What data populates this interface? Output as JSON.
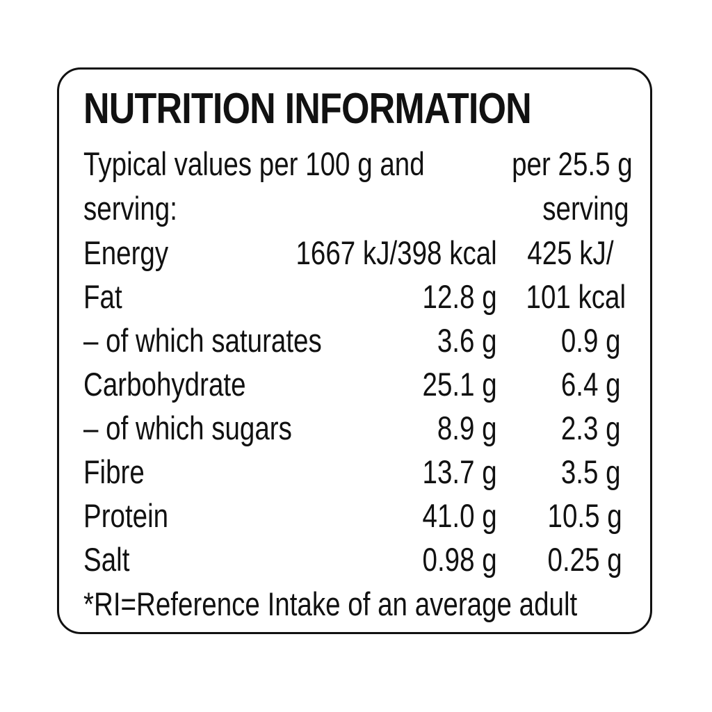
{
  "label": {
    "title": "NUTRITION INFORMATION",
    "header": {
      "line1_left": "Typical values per 100 g and",
      "line1_right": "per 25.5 g",
      "line2_left": "serving:",
      "line2_right": "serving"
    },
    "rows": [
      {
        "name": "Energy",
        "per_100g": "1667 kJ/398 kcal",
        "per_serving": "425 kJ/"
      },
      {
        "name": "Fat",
        "per_100g": "12.8 g",
        "per_serving": "101 kcal"
      },
      {
        "name": "– of which saturates",
        "per_100g": "3.6 g",
        "per_serving": "0.9 g"
      },
      {
        "name": "Carbohydrate",
        "per_100g": "25.1 g",
        "per_serving": "6.4 g"
      },
      {
        "name": "– of which sugars",
        "per_100g": "8.9 g",
        "per_serving": "2.3 g"
      },
      {
        "name": "Fibre",
        "per_100g": "13.7 g",
        "per_serving": "3.5 g"
      },
      {
        "name": "Protein",
        "per_100g": "41.0 g",
        "per_serving": "10.5 g"
      },
      {
        "name": "Salt",
        "per_100g": "0.98 g",
        "per_serving": "0.25 g"
      }
    ],
    "footnote": "*RI=Reference Intake of an average adult"
  }
}
